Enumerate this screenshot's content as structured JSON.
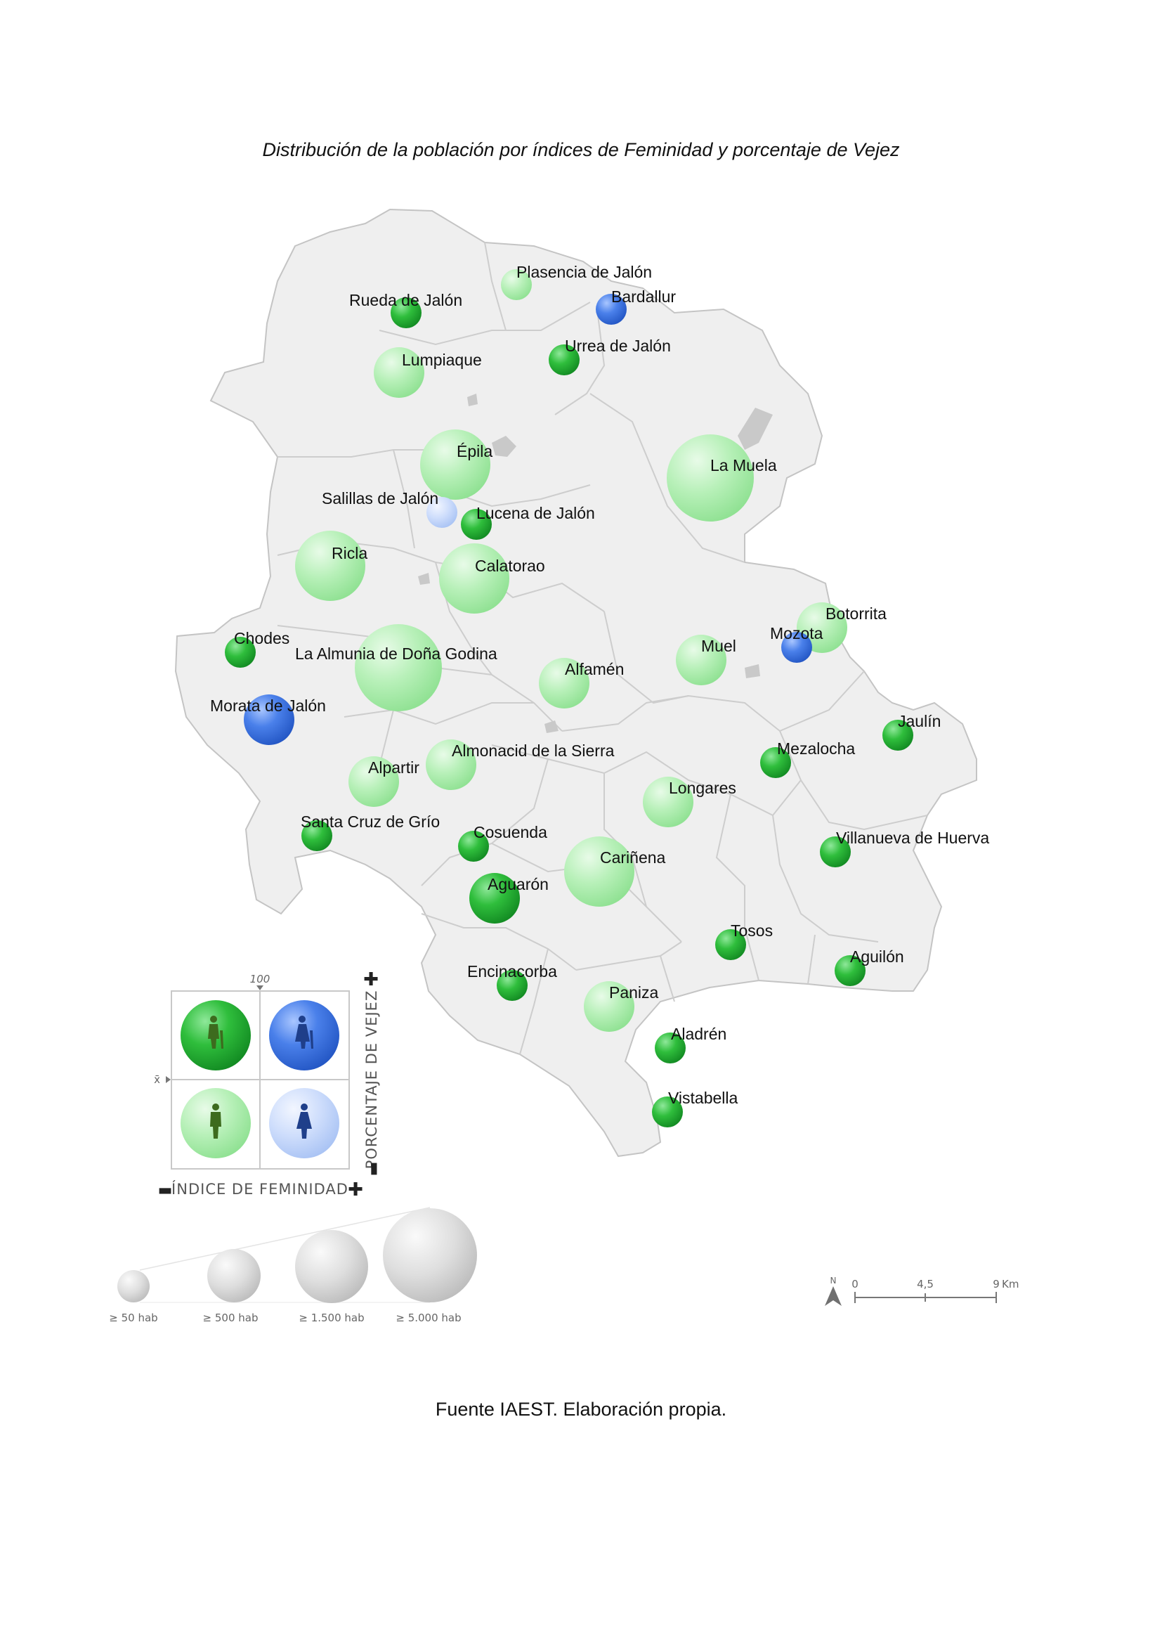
{
  "title": "Distribución de la población por índices de Feminidad y porcentaje de Vejez",
  "source": "Fuente IAEST. Elaboración propia.",
  "colors": {
    "masc_old": "#1fae2f",
    "fem_old": "#3d74e0",
    "masc_young": "#a6eba8",
    "fem_young": "#c5d8fb",
    "land": "#efefef",
    "border": "#c4c4c4",
    "water": "#c9c9c9"
  },
  "municipalities": [
    {
      "name": "Plasencia de Jalón",
      "cat": "masc_young",
      "size": 1
    },
    {
      "name": "Rueda de Jalón",
      "cat": "masc_old",
      "size": 1
    },
    {
      "name": "Bardallur",
      "cat": "fem_old",
      "size": 1
    },
    {
      "name": "Urrea de Jalón",
      "cat": "masc_old",
      "size": 1
    },
    {
      "name": "Lumpiaque",
      "cat": "masc_young",
      "size": 2
    },
    {
      "name": "Épila",
      "cat": "masc_young",
      "size": 3
    },
    {
      "name": "La Muela",
      "cat": "masc_young",
      "size": 4
    },
    {
      "name": "Salillas de Jalón",
      "cat": "fem_young",
      "size": 1
    },
    {
      "name": "Lucena de Jalón",
      "cat": "masc_old",
      "size": 1
    },
    {
      "name": "Ricla",
      "cat": "masc_young",
      "size": 3
    },
    {
      "name": "Calatorao",
      "cat": "masc_young",
      "size": 3
    },
    {
      "name": "Botorrita",
      "cat": "masc_young",
      "size": 2
    },
    {
      "name": "Mozota",
      "cat": "fem_old",
      "size": 1
    },
    {
      "name": "Chodes",
      "cat": "masc_old",
      "size": 1
    },
    {
      "name": "La Almunia de Doña Godina",
      "cat": "masc_young",
      "size": 4
    },
    {
      "name": "Muel",
      "cat": "masc_young",
      "size": 2
    },
    {
      "name": "Alfamén",
      "cat": "masc_young",
      "size": 2
    },
    {
      "name": "Morata de Jalón",
      "cat": "fem_old",
      "size": 2
    },
    {
      "name": "Jaulín",
      "cat": "masc_old",
      "size": 1
    },
    {
      "name": "Mezalocha",
      "cat": "masc_old",
      "size": 1
    },
    {
      "name": "Almonacid de la Sierra",
      "cat": "masc_young",
      "size": 2
    },
    {
      "name": "Alpartir",
      "cat": "masc_young",
      "size": 2
    },
    {
      "name": "Longares",
      "cat": "masc_young",
      "size": 2
    },
    {
      "name": "Santa Cruz de Grío",
      "cat": "masc_old",
      "size": 1
    },
    {
      "name": "Cosuenda",
      "cat": "masc_old",
      "size": 1
    },
    {
      "name": "Villanueva de Huerva",
      "cat": "masc_old",
      "size": 1
    },
    {
      "name": "Cariñena",
      "cat": "masc_young",
      "size": 3
    },
    {
      "name": "Aguarón",
      "cat": "masc_old",
      "size": 2
    },
    {
      "name": "Tosos",
      "cat": "masc_old",
      "size": 1
    },
    {
      "name": "Aguilón",
      "cat": "masc_old",
      "size": 1
    },
    {
      "name": "Encinacorba",
      "cat": "masc_old",
      "size": 1
    },
    {
      "name": "Paniza",
      "cat": "masc_young",
      "size": 2
    },
    {
      "name": "Aladrén",
      "cat": "masc_old",
      "size": 1
    },
    {
      "name": "Vistabella",
      "cat": "masc_old",
      "size": 1
    }
  ],
  "legend": {
    "mean_tick": "100",
    "mean_symbol": "x̄",
    "vejez_axis_label": "PORCENTAJE DE VEJEZ",
    "feminidad_axis_label": "ÍNDICE DE FEMINIDAD",
    "plus": "✚",
    "minus": "▬",
    "size_classes": [
      {
        "label": "≥ 50 hab"
      },
      {
        "label": "≥ 500 hab"
      },
      {
        "label": "≥ 1.500 hab"
      },
      {
        "label": "≥ 5.000 hab"
      }
    ]
  },
  "scale": {
    "north_symbol": "N",
    "ticks": [
      "0",
      "4,5",
      "9"
    ],
    "unit": "Km"
  }
}
